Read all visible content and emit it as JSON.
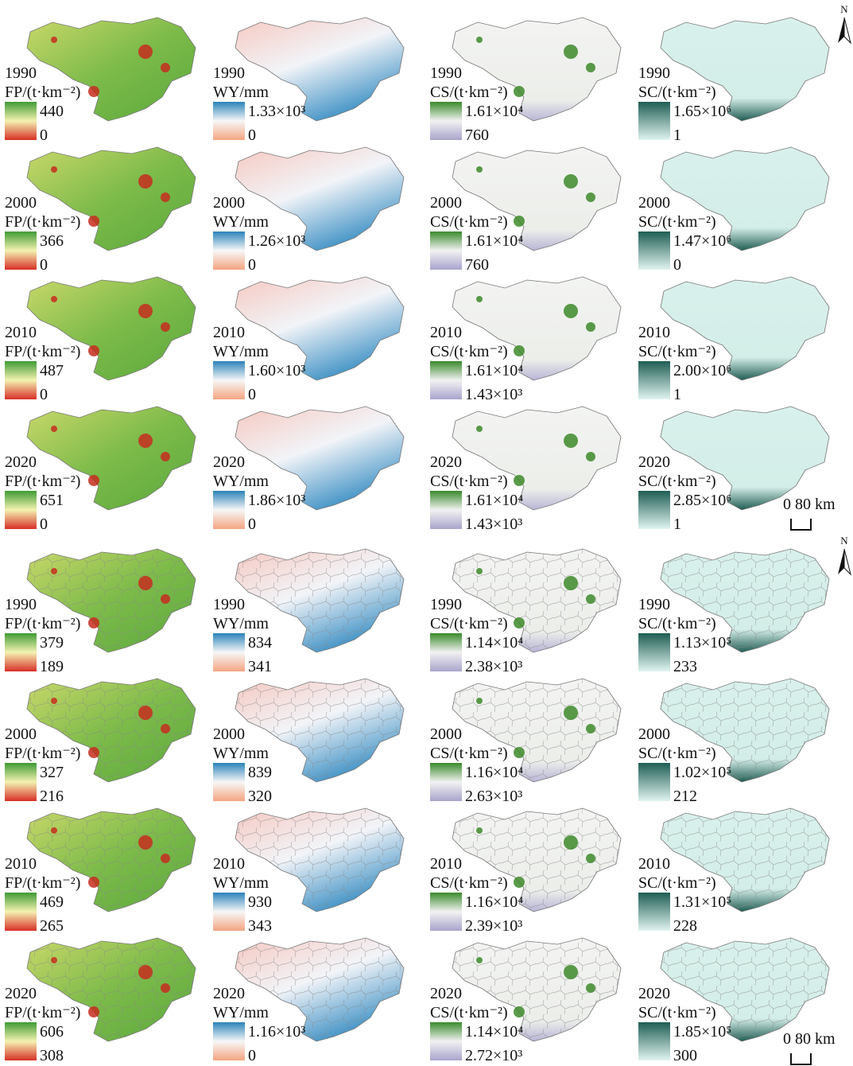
{
  "groups": [
    {
      "north": "N",
      "scale": "0 80 km",
      "rows": [
        [
          {
            "year": "1990",
            "unit": "FP/(t·km⁻²)",
            "max": "440",
            "min": "0"
          },
          {
            "year": "1990",
            "unit": "WY/mm",
            "max": "1.33×10³",
            "min": "0"
          },
          {
            "year": "1990",
            "unit": "CS/(t·km⁻²)",
            "max": "1.61×10⁴",
            "min": "760"
          },
          {
            "year": "1990",
            "unit": "SC/(t·km⁻²)",
            "max": "1.65×10⁶",
            "min": "1"
          }
        ],
        [
          {
            "year": "2000",
            "unit": "FP/(t·km⁻²)",
            "max": "366",
            "min": "0"
          },
          {
            "year": "2000",
            "unit": "WY/mm",
            "max": "1.26×10³",
            "min": "0"
          },
          {
            "year": "2000",
            "unit": "CS/(t·km⁻²)",
            "max": "1.61×10⁴",
            "min": "760"
          },
          {
            "year": "2000",
            "unit": "SC/(t·km⁻²)",
            "max": "1.47×10⁶",
            "min": "0"
          }
        ],
        [
          {
            "year": "2010",
            "unit": "FP/(t·km⁻²)",
            "max": "487",
            "min": "0"
          },
          {
            "year": "2010",
            "unit": "WY/mm",
            "max": "1.60×10³",
            "min": "0"
          },
          {
            "year": "2010",
            "unit": "CS/(t·km⁻²)",
            "max": "1.61×10⁴",
            "min": "1.43×10³"
          },
          {
            "year": "2010",
            "unit": "SC/(t·km⁻²)",
            "max": "2.00×10⁶",
            "min": "1"
          }
        ],
        [
          {
            "year": "2020",
            "unit": "FP/(t·km⁻²)",
            "max": "651",
            "min": "0"
          },
          {
            "year": "2020",
            "unit": "WY/mm",
            "max": "1.86×10³",
            "min": "0"
          },
          {
            "year": "2020",
            "unit": "CS/(t·km⁻²)",
            "max": "1.61×10⁴",
            "min": "1.43×10³"
          },
          {
            "year": "2020",
            "unit": "SC/(t·km⁻²)",
            "max": "2.85×10⁶",
            "min": "1"
          }
        ]
      ]
    },
    {
      "north": "N",
      "scale": "0 80 km",
      "rows": [
        [
          {
            "year": "1990",
            "unit": "FP/(t·km⁻²)",
            "max": "379",
            "min": "189"
          },
          {
            "year": "1990",
            "unit": "WY/mm",
            "max": "834",
            "min": "341"
          },
          {
            "year": "1990",
            "unit": "CS/(t·km⁻²)",
            "max": "1.14×10⁴",
            "min": "2.38×10³"
          },
          {
            "year": "1990",
            "unit": "SC/(t·km⁻²)",
            "max": "1.13×10⁵",
            "min": "233"
          }
        ],
        [
          {
            "year": "2000",
            "unit": "FP/(t·km⁻²)",
            "max": "327",
            "min": "216"
          },
          {
            "year": "2000",
            "unit": "WY/mm",
            "max": "839",
            "min": "320"
          },
          {
            "year": "2000",
            "unit": "CS/(t·km⁻²)",
            "max": "1.16×10⁴",
            "min": "2.63×10³"
          },
          {
            "year": "2000",
            "unit": "SC/(t·km⁻²)",
            "max": "1.02×10⁵",
            "min": "212"
          }
        ],
        [
          {
            "year": "2010",
            "unit": "FP/(t·km⁻²)",
            "max": "469",
            "min": "265"
          },
          {
            "year": "2010",
            "unit": "WY/mm",
            "max": "930",
            "min": "343"
          },
          {
            "year": "2010",
            "unit": "CS/(t·km⁻²)",
            "max": "1.16×10⁴",
            "min": "2.39×10³"
          },
          {
            "year": "2010",
            "unit": "SC/(t·km⁻²)",
            "max": "1.31×10⁵",
            "min": "228"
          }
        ],
        [
          {
            "year": "2020",
            "unit": "FP/(t·km⁻²)",
            "max": "606",
            "min": "308"
          },
          {
            "year": "2020",
            "unit": "WY/mm",
            "max": "1.16×10³",
            "min": "0"
          },
          {
            "year": "2020",
            "unit": "CS/(t·km⁻²)",
            "max": "1.14×10⁴",
            "min": "2.72×10³"
          },
          {
            "year": "2020",
            "unit": "SC/(t·km⁻²)",
            "max": "1.85×10⁵",
            "min": "300"
          }
        ]
      ]
    }
  ]
}
